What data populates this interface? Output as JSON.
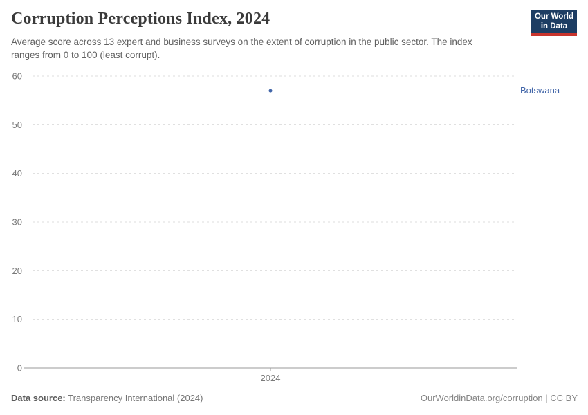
{
  "header": {
    "title": "Corruption Perceptions Index, 2024",
    "subtitle": "Average score across 13 expert and business surveys on the extent of corruption in the public sector. The index ranges from 0 to 100 (least corrupt)."
  },
  "logo": {
    "line1": "Our World",
    "line2": "in Data",
    "bg_color": "#1d3d63",
    "accent_color": "#c8342d"
  },
  "chart_data": {
    "type": "scatter",
    "title": "Corruption Perceptions Index, 2024",
    "x": [
      2024
    ],
    "xticks": [
      "2024"
    ],
    "series": [
      {
        "name": "Botswana",
        "values": [
          57
        ],
        "color": "#4165a8"
      }
    ],
    "xlabel": "",
    "ylabel": "",
    "ylim": [
      0,
      60
    ],
    "yticks": [
      0,
      10,
      20,
      30,
      40,
      50,
      60
    ],
    "grid": "horizontal-dashed",
    "gridline_color": "#dcdcdc",
    "axis_color": "#999999",
    "legend_position": "right-of-plot"
  },
  "footer": {
    "source_label": "Data source:",
    "source_value": "Transparency International (2024)",
    "license": "OurWorldinData.org/corruption | CC BY"
  }
}
